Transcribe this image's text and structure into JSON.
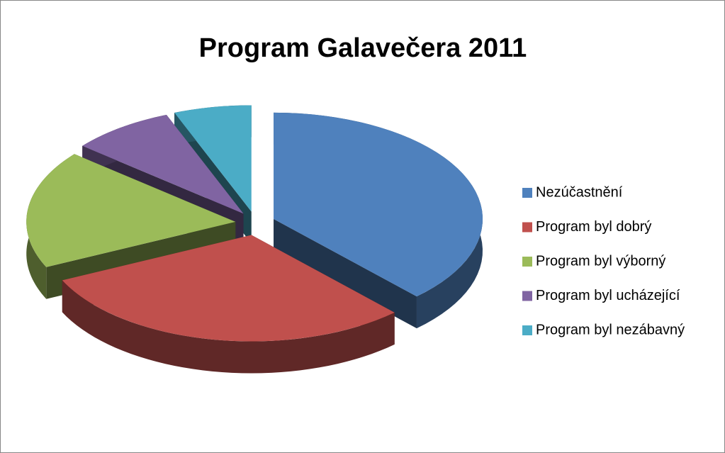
{
  "chart_data": {
    "type": "pie",
    "title": "Program Galavečera 2011",
    "categories": [
      "Nezúčastnění",
      "Program byl dobrý",
      "Program byl výborný",
      "Program byl ucházející",
      "Program byl nezábavný"
    ],
    "values": [
      38,
      30,
      18,
      8,
      6
    ],
    "colors": [
      "#4f81bd",
      "#c0504d",
      "#9bbb59",
      "#8064a2",
      "#4bacc6"
    ],
    "legend": "right"
  }
}
